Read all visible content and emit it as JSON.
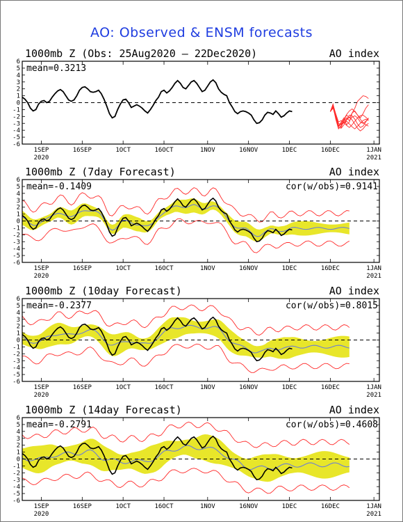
{
  "title": "AO: Observed & ENSM forecasts",
  "chart_data": [
    {
      "type": "line",
      "panel_title": "1000mb Z (Obs: 25Aug2020 – 22Dec2020)",
      "index_label": "AO index",
      "stat_mean": "mean=0.3213",
      "stat_cor": "",
      "ylim": [
        -6,
        6
      ],
      "yticks": [
        -6,
        -5,
        -4,
        -3,
        -2,
        -1,
        0,
        1,
        2,
        3,
        4,
        5,
        6
      ],
      "x_ticks": [
        "1SEP",
        "16SEP",
        "1OCT",
        "16OCT",
        "1NOV",
        "16NOV",
        "1DEC",
        "16DEC",
        "1JAN"
      ],
      "x_year_labels": [
        {
          "at": "1SEP",
          "text": "2020"
        },
        {
          "at": "1JAN",
          "text": "2021"
        }
      ],
      "grid": false,
      "zero_line": "dashed",
      "observed": {
        "day0": "25Aug2020",
        "y": [
          0.8,
          0.5,
          0,
          -0.8,
          -1.2,
          -1,
          -0.2,
          0.2,
          0.3,
          0,
          0.2,
          0.8,
          1.3,
          1.7,
          1.9,
          1.6,
          1,
          0.4,
          0.2,
          0.4,
          1,
          1.8,
          2.2,
          2.3,
          2,
          1.6,
          1.5,
          1.6,
          1.8,
          1.3,
          0.5,
          -0.5,
          -1.6,
          -2.2,
          -2,
          -1,
          -0.2,
          0.4,
          0.5,
          0,
          -0.7,
          -0.5,
          -0.3,
          -0.5,
          -0.8,
          -1.2,
          -1.5,
          -1,
          -0.4,
          0.3,
          0.8,
          1.6,
          1.8,
          1.4,
          1.7,
          2.2,
          2.8,
          3.2,
          2.8,
          2.2,
          2,
          2.5,
          3,
          3.2,
          2.8,
          2.2,
          1.6,
          1.8,
          2.4,
          3,
          3.3,
          2.9,
          2,
          1.5,
          1.2,
          1,
          0,
          -0.6,
          -1.3,
          -1.6,
          -1.3,
          -1.2,
          -1.3,
          -1.5,
          -1.8,
          -2.5,
          -3,
          -2.9,
          -2.5,
          -1.8,
          -1.4,
          -1.5,
          -1.7,
          -1.2,
          -1.6,
          -2.1,
          -1.9,
          -1.5,
          -1.2,
          -1.3
        ]
      },
      "forecast_members": {
        "start_day": 113,
        "count": 8,
        "y": [
          [
            -1.3,
            -0.5,
            -2.2,
            -3.5,
            -2.8,
            -2.2,
            -3.2,
            -2.8,
            -1.5,
            -0.8,
            0.2,
            0.6,
            1,
            0.9,
            0.6
          ],
          [
            -1.3,
            -0.8,
            -2,
            -3.2,
            -3.6,
            -2.5,
            -1.8,
            -2.2,
            -1.5,
            -1.2,
            -1.8,
            -2.2,
            -1.6,
            -0.8,
            -0.3
          ],
          [
            -1.3,
            -0.2,
            -1.8,
            -3,
            -3.2,
            -2.6,
            -2.2,
            -2.6,
            -2.1,
            -1.9,
            -2.2,
            -2.8,
            -3,
            -2.7,
            -2.3
          ],
          [
            -1.3,
            -0.6,
            -2.1,
            -3.4,
            -3.1,
            -2.8,
            -2.4,
            -1.8,
            -1.9,
            -2.4,
            -3.1,
            -3.6,
            -3.4,
            -2.8,
            -2.2
          ],
          [
            -1.3,
            -0.4,
            -2.4,
            -3.8,
            -3.3,
            -2.9,
            -2.7,
            -3.1,
            -3.5,
            -3.8,
            -3.4,
            -3,
            -2.6,
            -2.4,
            -2.6
          ],
          [
            -1.3,
            -0.3,
            -1.6,
            -2.8,
            -2.6,
            -2.9,
            -3.3,
            -3.6,
            -3.2,
            -2.7,
            -2.2,
            -1.9,
            -1.8,
            -2.1,
            -2.5
          ],
          [
            -1.3,
            -0.7,
            -2.3,
            -3.6,
            -3.7,
            -3.2,
            -2.5,
            -2.1,
            -2.5,
            -3.1,
            -3.7,
            -4.1,
            -3.8,
            -3.3,
            -3
          ],
          [
            -1.3,
            -0.5,
            -1.9,
            -3.3,
            -3,
            -2.4,
            -1.7,
            -1.2,
            -0.9,
            -1.3,
            -1.8,
            -2.4,
            -2.9,
            -3.2,
            -3.4
          ]
        ]
      }
    },
    {
      "type": "line",
      "panel_title": "1000mb Z (7day Forecast)",
      "index_label": "AO index",
      "stat_mean": "mean=-0.1409",
      "stat_cor": "cor(w/obs)=0.9141",
      "ylim": [
        -6,
        6
      ],
      "yticks": [
        -6,
        -5,
        -4,
        -3,
        -2,
        -1,
        0,
        1,
        2,
        3,
        4,
        5,
        6
      ],
      "x_ticks": [
        "1SEP",
        "16SEP",
        "1OCT",
        "16OCT",
        "1NOV",
        "16NOV",
        "1DEC",
        "16DEC",
        "1JAN"
      ],
      "x_year_labels": [
        {
          "at": "1SEP",
          "text": "2020"
        },
        {
          "at": "1JAN",
          "text": "2021"
        }
      ],
      "grid": false,
      "zero_line": "dashed",
      "forecast_start_day": 7,
      "forecast_lag_days": 7,
      "ensemble_spread_scale": 1.0,
      "member_range_scale": 2.2
    },
    {
      "type": "line",
      "panel_title": "1000mb Z (10day Forecast)",
      "index_label": "AO index",
      "stat_mean": "mean=-0.2377",
      "stat_cor": "cor(w/obs)=0.8015",
      "ylim": [
        -6,
        6
      ],
      "yticks": [
        -6,
        -5,
        -4,
        -3,
        -2,
        -1,
        0,
        1,
        2,
        3,
        4,
        5,
        6
      ],
      "x_ticks": [
        "1SEP",
        "16SEP",
        "1OCT",
        "16OCT",
        "1NOV",
        "16NOV",
        "1DEC",
        "16DEC",
        "1JAN"
      ],
      "x_year_labels": [
        {
          "at": "1SEP",
          "text": "2020"
        },
        {
          "at": "1JAN",
          "text": "2021"
        }
      ],
      "grid": false,
      "zero_line": "dashed",
      "forecast_start_day": 10,
      "forecast_lag_days": 10,
      "ensemble_spread_scale": 1.5,
      "member_range_scale": 2.8
    },
    {
      "type": "line",
      "panel_title": "1000mb Z (14day Forecast)",
      "index_label": "AO index",
      "stat_mean": "mean=-0.2791",
      "stat_cor": "cor(w/obs)=0.4608",
      "ylim": [
        -6,
        6
      ],
      "yticks": [
        -6,
        -5,
        -4,
        -3,
        -2,
        -1,
        0,
        1,
        2,
        3,
        4,
        5,
        6
      ],
      "x_ticks": [
        "1SEP",
        "16SEP",
        "1OCT",
        "16OCT",
        "1NOV",
        "16NOV",
        "1DEC",
        "16DEC",
        "1JAN"
      ],
      "x_year_labels": [
        {
          "at": "1SEP",
          "text": "2020"
        },
        {
          "at": "1JAN",
          "text": "2021"
        }
      ],
      "grid": false,
      "zero_line": "dashed",
      "forecast_start_day": 14,
      "forecast_lag_days": 14,
      "ensemble_spread_scale": 1.9,
      "member_range_scale": 3.3
    }
  ],
  "colors": {
    "title": "#1f3de0",
    "observed": "#000000",
    "ensemble_mean": "#6b7fd6",
    "spread": "#e8e62a",
    "members": "#ff2a2a",
    "zero_line": "#000000"
  }
}
